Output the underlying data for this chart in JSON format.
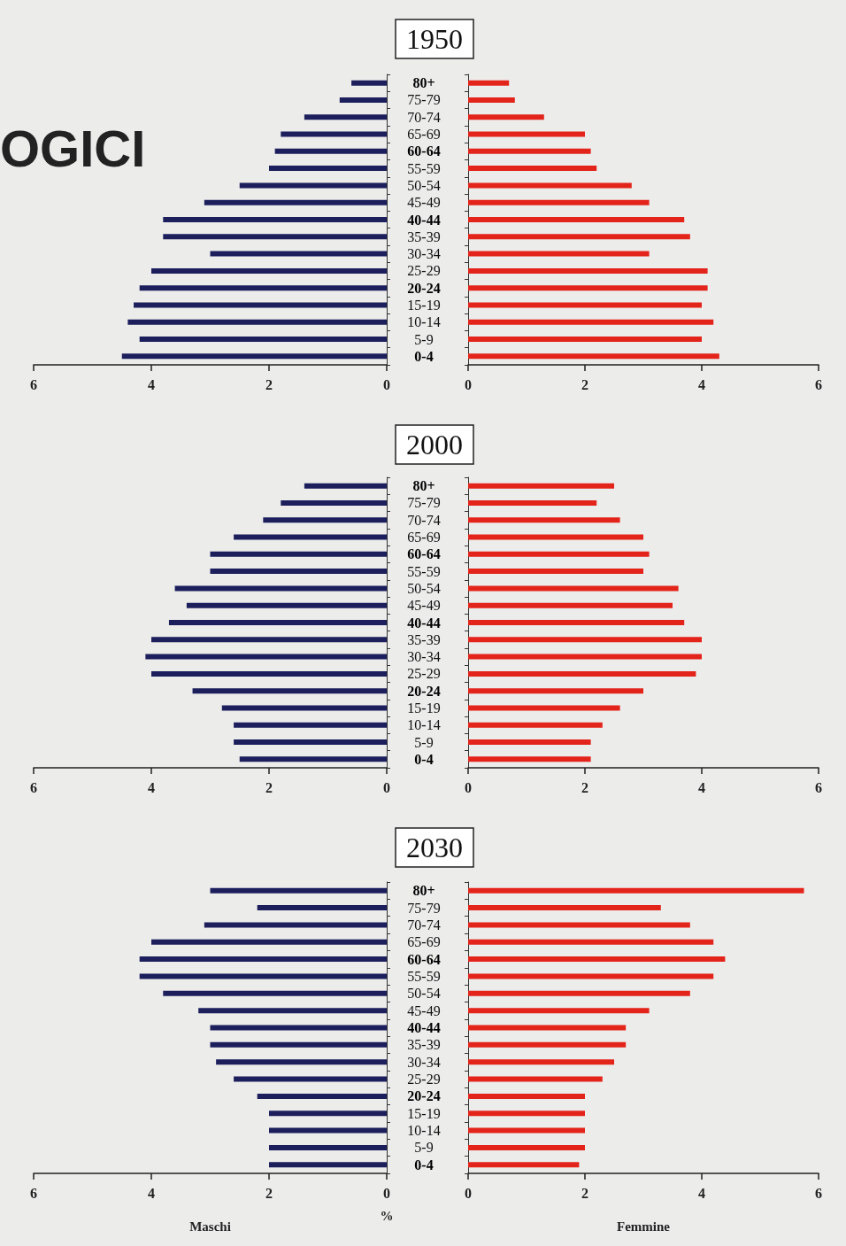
{
  "chart_data": [
    {
      "type": "bar",
      "orientation": "horizontal",
      "title": "1950",
      "annotations": [
        "OGICI"
      ],
      "categories": [
        "80+",
        "75-79",
        "70-74",
        "65-69",
        "60-64",
        "55-59",
        "50-54",
        "45-49",
        "40-44",
        "35-39",
        "30-34",
        "25-29",
        "20-24",
        "15-19",
        "10-14",
        "5-9",
        "0-4"
      ],
      "color": "#1c1f5c",
      "xlim": [
        6,
        0
      ],
      "xticks": [
        6,
        4,
        2,
        0
      ],
      "values": [
        0.6,
        0.8,
        1.4,
        1.8,
        1.9,
        2.0,
        2.5,
        3.1,
        3.8,
        3.8,
        3.0,
        4.0,
        4.2,
        4.3,
        4.4,
        4.2,
        4.5
      ]
    },
    {
      "type": "bar",
      "orientation": "horizontal",
      "tick_labels": "x",
      "categories": [
        null,
        null,
        null,
        null,
        null,
        null,
        null,
        null,
        null,
        null,
        null,
        null,
        null,
        null,
        null,
        null,
        null
      ],
      "color": "#e3241b",
      "xlim": [
        0,
        6
      ],
      "xticks": [
        0,
        2,
        4,
        6
      ],
      "values": [
        0.7,
        0.8,
        1.3,
        2.0,
        2.1,
        2.2,
        2.8,
        3.1,
        3.7,
        3.8,
        3.1,
        4.1,
        4.1,
        4.0,
        4.2,
        4.0,
        4.3
      ]
    },
    {
      "type": "bar",
      "orientation": "horizontal",
      "title": "2000",
      "categories": [
        "80+",
        "75-79",
        "70-74",
        "65-69",
        "60-64",
        "55-59",
        "50-54",
        "45-49",
        "40-44",
        "35-39",
        "30-34",
        "25-29",
        "20-24",
        "15-19",
        "10-14",
        "5-9",
        "0-4"
      ],
      "color": "#1c1f5c",
      "xlim": [
        6,
        0
      ],
      "xticks": [
        6,
        4,
        2,
        0
      ],
      "values": [
        1.4,
        1.8,
        2.1,
        2.6,
        3.0,
        3.0,
        3.6,
        3.4,
        3.7,
        4.0,
        4.1,
        4.0,
        3.3,
        2.8,
        2.6,
        2.6,
        2.5
      ]
    },
    {
      "type": "bar",
      "orientation": "horizontal",
      "tick_labels": "x",
      "categories": [
        null,
        null,
        null,
        null,
        null,
        null,
        null,
        null,
        null,
        null,
        null,
        null,
        null,
        null,
        null,
        null,
        null
      ],
      "color": "#e3241b",
      "xlim": [
        0,
        6
      ],
      "xticks": [
        0,
        2,
        4,
        6
      ],
      "values": [
        2.5,
        2.2,
        2.6,
        3.0,
        3.1,
        3.0,
        3.6,
        3.5,
        3.7,
        4.0,
        4.0,
        3.9,
        3.0,
        2.6,
        2.3,
        2.1,
        2.1
      ]
    },
    {
      "type": "bar",
      "orientation": "horizontal",
      "title": "2030",
      "xlabel": "Maschi",
      "annotations": [
        "%"
      ],
      "categories": [
        "80+",
        "75-79",
        "70-74",
        "65-69",
        "60-64",
        "55-59",
        "50-54",
        "45-49",
        "40-44",
        "35-39",
        "30-34",
        "25-29",
        "20-24",
        "15-19",
        "10-14",
        "5-9",
        "0-4"
      ],
      "color": "#1c1f5c",
      "xlim": [
        6,
        0
      ],
      "xticks": [
        6,
        4,
        2,
        0
      ],
      "values": [
        3.0,
        2.2,
        3.1,
        4.0,
        4.2,
        4.2,
        3.8,
        3.2,
        3.0,
        3.0,
        2.9,
        2.6,
        2.2,
        2.0,
        2.0,
        2.0,
        2.0
      ]
    },
    {
      "type": "bar",
      "orientation": "horizontal",
      "tick_labels": "x",
      "xlabel": "Femmine",
      "categories": [
        null,
        null,
        null,
        null,
        null,
        null,
        null,
        null,
        null,
        null,
        null,
        null,
        null,
        null,
        null,
        null,
        null
      ],
      "color": "#e3241b",
      "xlim": [
        0,
        6
      ],
      "xticks": [
        0,
        2,
        4,
        6
      ],
      "values": [
        5.75,
        3.3,
        3.8,
        4.2,
        4.4,
        4.2,
        3.8,
        3.1,
        2.7,
        2.7,
        2.5,
        2.3,
        2.0,
        2.0,
        2.0,
        2.0,
        1.9
      ]
    }
  ]
}
